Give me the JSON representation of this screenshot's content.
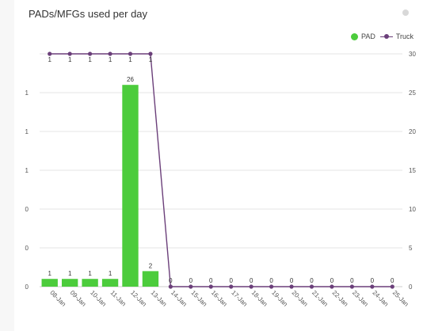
{
  "title": "PADs/MFGs used per day",
  "legend": {
    "pad_label": "PAD",
    "truck_label": "Truck"
  },
  "colors": {
    "pad": "#4ccc3c",
    "truck": "#6b3f7a",
    "grid": "#e6e6e6"
  },
  "icons": {
    "menu": "menu-icon"
  },
  "chart_data": {
    "type": "bar",
    "categories": [
      "08-Jan",
      "09-Jan",
      "10-Jan",
      "11-Jan",
      "12-Jan",
      "13-Jan",
      "14-Jan",
      "15-Jan",
      "16-Jan",
      "17-Jan",
      "18-Jan",
      "19-Jan",
      "20-Jan",
      "21-Jan",
      "22-Jan",
      "23-Jan",
      "24-Jan",
      "25-Jan"
    ],
    "series": [
      {
        "name": "PAD",
        "type": "bar",
        "axis": "right",
        "values": [
          1,
          1,
          1,
          1,
          26,
          2,
          0,
          0,
          0,
          0,
          0,
          0,
          0,
          0,
          0,
          0,
          0,
          0
        ]
      },
      {
        "name": "Truck",
        "type": "line",
        "axis": "left",
        "values": [
          1,
          1,
          1,
          1,
          1,
          1,
          0,
          0,
          0,
          0,
          0,
          0,
          0,
          0,
          0,
          0,
          0,
          0
        ]
      }
    ],
    "left_ticks": [
      "0",
      "0",
      "0",
      "1",
      "1",
      "1"
    ],
    "right_ticks": [
      "0",
      "5",
      "10",
      "15",
      "20",
      "25",
      "30"
    ],
    "ylim_left": [
      0,
      1
    ],
    "ylim_right": [
      0,
      30
    ],
    "grid": true,
    "legend_position": "top-right"
  }
}
